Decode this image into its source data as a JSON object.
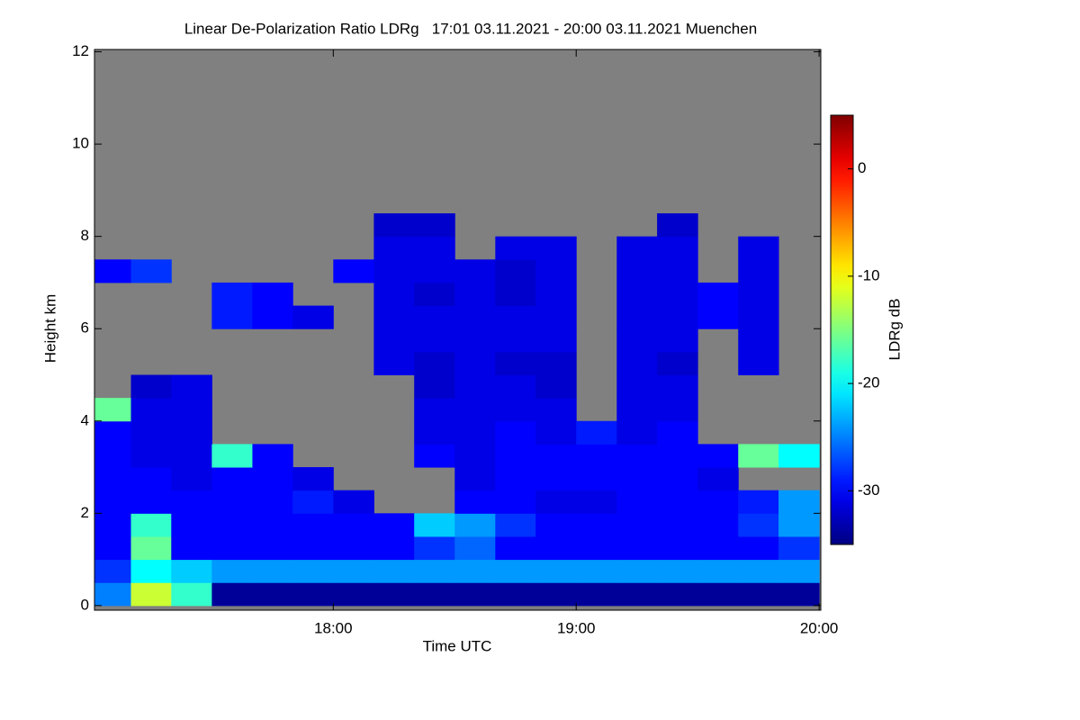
{
  "chart_data": {
    "type": "heatmap",
    "title": "Linear De-Polarization Ratio LDRg   17:01 03.11.2021 - 20:00 03.11.2021 Muenchen",
    "xlabel": "Time UTC",
    "ylabel": "Height km",
    "colorbar_label": "LDRg dB",
    "colormap": "jet",
    "null_color": "#808080",
    "xlim": [
      17.017,
      20.007
    ],
    "xticks": [
      {
        "value": 18,
        "label": "18:00"
      },
      {
        "value": 19,
        "label": "19:00"
      },
      {
        "value": 20,
        "label": "20:00"
      }
    ],
    "ylim": [
      -0.1,
      12.05
    ],
    "yticks": [
      0,
      2,
      4,
      6,
      8,
      10,
      12
    ],
    "clim": [
      -35,
      5
    ],
    "cticks": [
      -30,
      -20,
      -10,
      0
    ],
    "xbins": [
      17.017,
      17.167,
      17.333,
      17.5,
      17.667,
      17.833,
      18,
      18.167,
      18.333,
      18.5,
      18.667,
      18.833,
      19,
      19.167,
      19.333,
      19.5,
      19.667,
      19.833,
      20
    ],
    "ybins": [
      0,
      0.5,
      1,
      1.5,
      2,
      2.5,
      3,
      3.5,
      4,
      4.5,
      5,
      5.5,
      6,
      6.5,
      7,
      7.5,
      8,
      8.5
    ],
    "z": [
      [
        -25,
        -12,
        -18,
        -34,
        -34,
        -34,
        -34,
        -34,
        -34,
        -34,
        -34,
        -34,
        -34,
        -34,
        -34,
        -34,
        -34,
        -34
      ],
      [
        -28,
        -20,
        -22,
        -24,
        -24,
        -24,
        -24,
        -24,
        -24,
        -24,
        -24,
        -24,
        -24,
        -24,
        -24,
        -24,
        -24,
        -24
      ],
      [
        -30,
        -16,
        -30,
        -30,
        -30,
        -30,
        -30,
        -30,
        -28,
        -26,
        -30,
        -30,
        -30,
        -30,
        -30,
        -30,
        -30,
        -28
      ],
      [
        -30,
        -18,
        -30,
        -30,
        -30,
        -30,
        -30,
        -30,
        -22,
        -24,
        -28,
        -30,
        -30,
        -30,
        -30,
        -30,
        -28,
        -24
      ],
      [
        -30,
        -30,
        -30,
        -30,
        -30,
        -29,
        -31,
        null,
        null,
        -30,
        -30,
        -31,
        -31,
        -30,
        -30,
        -30,
        -29,
        -24
      ],
      [
        -30,
        -30,
        -31,
        -30,
        -30,
        -31,
        null,
        null,
        null,
        -31,
        -30,
        -30,
        -30,
        -30,
        -30,
        -31,
        null,
        null
      ],
      [
        -30,
        -31,
        -31,
        -18,
        -30,
        null,
        null,
        null,
        -30,
        -31,
        -30,
        -30,
        -30,
        -30,
        -30,
        -30,
        -16,
        -20
      ],
      [
        -30,
        -31,
        -31,
        null,
        null,
        null,
        null,
        null,
        -31,
        -31,
        -30,
        -31,
        -29,
        -31,
        -30,
        null,
        null,
        null
      ],
      [
        -16,
        -31,
        -31,
        null,
        null,
        null,
        null,
        null,
        -31,
        -31,
        -31,
        -31,
        null,
        -31,
        -31,
        null,
        null,
        null
      ],
      [
        null,
        -32,
        -31,
        null,
        null,
        null,
        null,
        null,
        -32,
        -31,
        -31,
        -32,
        null,
        -31,
        -31,
        null,
        null,
        null
      ],
      [
        null,
        null,
        null,
        null,
        null,
        null,
        null,
        -31,
        -32,
        -31,
        -32,
        -32,
        null,
        -31,
        -32,
        null,
        -31,
        null
      ],
      [
        null,
        null,
        null,
        null,
        null,
        null,
        null,
        -31,
        -31,
        -31,
        -31,
        -31,
        null,
        -31,
        -31,
        null,
        -31,
        null
      ],
      [
        null,
        null,
        null,
        -29,
        -30,
        -31,
        null,
        -31,
        -31,
        -31,
        -31,
        -31,
        null,
        -31,
        -31,
        -30,
        -31,
        null
      ],
      [
        null,
        null,
        null,
        -29,
        -30,
        null,
        null,
        -31,
        -32,
        -31,
        -32,
        -31,
        null,
        -31,
        -31,
        -30,
        -31,
        null
      ],
      [
        -30,
        -28,
        null,
        null,
        null,
        null,
        -30,
        -31,
        -31,
        -31,
        -32,
        -31,
        null,
        -31,
        -31,
        null,
        -31,
        null
      ],
      [
        null,
        null,
        null,
        null,
        null,
        null,
        null,
        -31,
        -31,
        null,
        -31,
        -31,
        null,
        -31,
        -31,
        null,
        -31,
        null
      ],
      [
        null,
        null,
        null,
        null,
        null,
        null,
        null,
        -32,
        -32,
        null,
        null,
        null,
        null,
        null,
        -32,
        null,
        null,
        null
      ]
    ]
  }
}
